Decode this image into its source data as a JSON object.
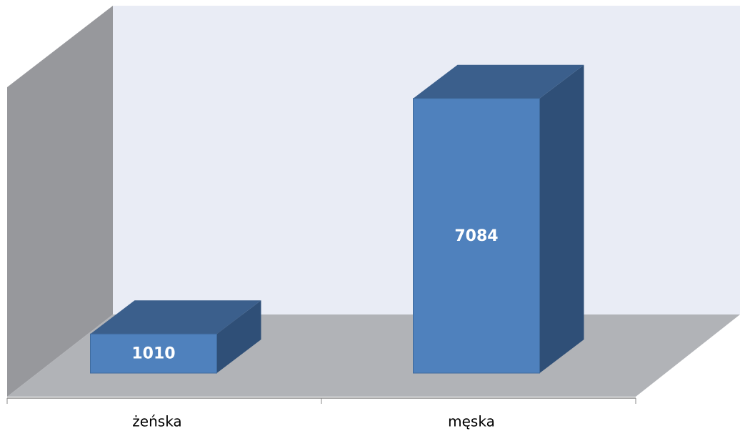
{
  "chart_data": {
    "type": "bar3d",
    "categories": [
      "żeńska",
      "męska"
    ],
    "values": [
      1010,
      7084
    ],
    "color": "#4f81bd",
    "ylim": [
      0,
      8000
    ]
  }
}
